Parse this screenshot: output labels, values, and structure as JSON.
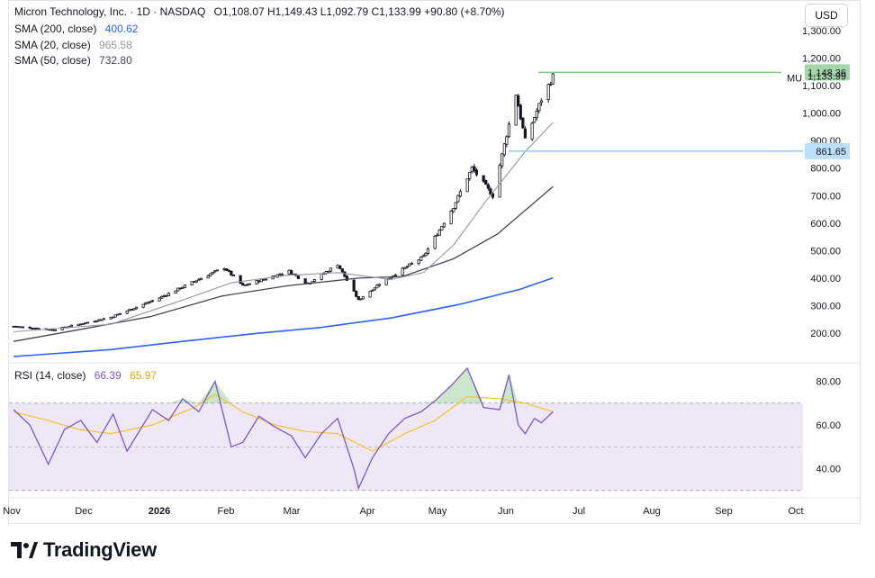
{
  "legend": {
    "title": "Micron Technology, Inc. · 1D · NASDAQ",
    "ohlc": "O1,108.07  H1,149.43  L1,092.79  C1,133.99  +90.80 (+8.70%)",
    "sma200_label": "SMA (200, close)",
    "sma200_value": "400.62",
    "sma20_label": "SMA (20, close)",
    "sma20_value": "965.58",
    "sma50_label": "SMA (50, close)",
    "sma50_value": "732.80",
    "rsi_label": "RSI (14, close)",
    "rsi_value": "66.39",
    "rsi_ma_value": "65.97"
  },
  "currency_button": "USD",
  "brand": "TradingView",
  "colors": {
    "up": "#ffffff",
    "down": "#131722",
    "sma200": "#2962ff",
    "sma20": "#9598a1",
    "sma50": "#434651",
    "rsi": "#7e57c2",
    "rsi_ma": "#f7c325",
    "rsi_band": "#ede7f6",
    "resistance": "#81c784",
    "support": "#90caf9",
    "price_label_green": "#a5d6a7",
    "price_label_blue": "#bbdefb"
  },
  "chart_data": {
    "type": "candlestick",
    "symbol": "MU",
    "price_axis": {
      "ticks": [
        "1,300.00",
        "1,200.00",
        "1,100.00",
        "1,000.00",
        "900.00",
        "800.00",
        "700.00",
        "600.00",
        "500.00",
        "400.00",
        "300.00",
        "200.00"
      ],
      "range": [
        130,
        1340
      ]
    },
    "time_axis": {
      "labels": [
        "Nov",
        "Dec",
        "2026",
        "Feb",
        "Mar",
        "Apr",
        "May",
        "Jun",
        "Jul",
        "Aug",
        "Sep",
        "Oct"
      ]
    },
    "last_price": "1,133.99",
    "last_price_label": "MU",
    "resistance_level": "1,148.36",
    "support_level": "861.65",
    "anchors": [
      {
        "date": "2025-11-03",
        "close": 225
      },
      {
        "date": "2025-11-20",
        "close": 212
      },
      {
        "date": "2025-12-15",
        "close": 258
      },
      {
        "date": "2026-01-05",
        "close": 328
      },
      {
        "date": "2026-01-26",
        "close": 412
      },
      {
        "date": "2026-02-02",
        "close": 438
      },
      {
        "date": "2026-02-10",
        "close": 372
      },
      {
        "date": "2026-03-02",
        "close": 425
      },
      {
        "date": "2026-03-10",
        "close": 380
      },
      {
        "date": "2026-03-23",
        "close": 450
      },
      {
        "date": "2026-04-01",
        "close": 320
      },
      {
        "date": "2026-04-10",
        "close": 380
      },
      {
        "date": "2026-04-29",
        "close": 478
      },
      {
        "date": "2026-05-12",
        "close": 660
      },
      {
        "date": "2026-05-20",
        "close": 800
      },
      {
        "date": "2026-05-29",
        "close": 700
      },
      {
        "date": "2026-06-08",
        "close": 1070
      },
      {
        "date": "2026-06-12",
        "close": 900
      },
      {
        "date": "2026-06-19",
        "close": 1050
      },
      {
        "date": "2026-06-24",
        "close": 1134
      }
    ],
    "sma20": [
      {
        "date": "2025-11-03",
        "value": 205
      },
      {
        "date": "2025-12-15",
        "value": 232
      },
      {
        "date": "2026-01-15",
        "value": 320
      },
      {
        "date": "2026-02-05",
        "value": 383
      },
      {
        "date": "2026-03-01",
        "value": 410
      },
      {
        "date": "2026-03-23",
        "value": 420
      },
      {
        "date": "2026-04-15",
        "value": 395
      },
      {
        "date": "2026-04-29",
        "value": 420
      },
      {
        "date": "2026-05-12",
        "value": 520
      },
      {
        "date": "2026-05-26",
        "value": 680
      },
      {
        "date": "2026-06-12",
        "value": 860
      },
      {
        "date": "2026-06-24",
        "value": 966
      }
    ],
    "sma50": [
      {
        "date": "2025-11-03",
        "value": 170
      },
      {
        "date": "2025-12-01",
        "value": 212
      },
      {
        "date": "2026-01-01",
        "value": 260
      },
      {
        "date": "2026-02-01",
        "value": 335
      },
      {
        "date": "2026-03-01",
        "value": 372
      },
      {
        "date": "2026-04-01",
        "value": 400
      },
      {
        "date": "2026-04-20",
        "value": 406
      },
      {
        "date": "2026-05-12",
        "value": 470
      },
      {
        "date": "2026-05-31",
        "value": 560
      },
      {
        "date": "2026-06-24",
        "value": 733
      }
    ],
    "sma200": [
      {
        "date": "2025-11-03",
        "value": 115
      },
      {
        "date": "2025-12-15",
        "value": 140
      },
      {
        "date": "2026-01-15",
        "value": 170
      },
      {
        "date": "2026-02-15",
        "value": 198
      },
      {
        "date": "2026-03-15",
        "value": 220
      },
      {
        "date": "2026-04-15",
        "value": 255
      },
      {
        "date": "2026-05-15",
        "value": 305
      },
      {
        "date": "2026-06-10",
        "value": 360
      },
      {
        "date": "2026-06-24",
        "value": 401
      }
    ],
    "rsi": {
      "axis_ticks": [
        "80.00",
        "60.00",
        "40.00"
      ],
      "range": [
        29,
        90
      ],
      "overbought": 70,
      "midline": 50,
      "oversold": 30,
      "rsi_points": [
        {
          "date": "2025-11-03",
          "value": 67
        },
        {
          "date": "2025-11-10",
          "value": 60
        },
        {
          "date": "2025-11-18",
          "value": 42
        },
        {
          "date": "2025-11-25",
          "value": 58
        },
        {
          "date": "2025-12-02",
          "value": 62
        },
        {
          "date": "2025-12-09",
          "value": 52
        },
        {
          "date": "2025-12-16",
          "value": 65
        },
        {
          "date": "2025-12-22",
          "value": 48
        },
        {
          "date": "2026-01-02",
          "value": 67
        },
        {
          "date": "2026-01-09",
          "value": 62
        },
        {
          "date": "2026-01-15",
          "value": 72
        },
        {
          "date": "2026-01-22",
          "value": 66
        },
        {
          "date": "2026-01-29",
          "value": 80
        },
        {
          "date": "2026-02-05",
          "value": 50
        },
        {
          "date": "2026-02-10",
          "value": 52
        },
        {
          "date": "2026-02-17",
          "value": 64
        },
        {
          "date": "2026-02-24",
          "value": 59
        },
        {
          "date": "2026-03-03",
          "value": 55
        },
        {
          "date": "2026-03-09",
          "value": 45
        },
        {
          "date": "2026-03-16",
          "value": 56
        },
        {
          "date": "2026-03-23",
          "value": 63
        },
        {
          "date": "2026-03-30",
          "value": 40
        },
        {
          "date": "2026-04-01",
          "value": 31
        },
        {
          "date": "2026-04-07",
          "value": 45
        },
        {
          "date": "2026-04-14",
          "value": 56
        },
        {
          "date": "2026-04-21",
          "value": 63
        },
        {
          "date": "2026-04-28",
          "value": 66
        },
        {
          "date": "2026-05-04",
          "value": 71
        },
        {
          "date": "2026-05-11",
          "value": 78
        },
        {
          "date": "2026-05-18",
          "value": 86
        },
        {
          "date": "2026-05-25",
          "value": 68
        },
        {
          "date": "2026-06-01",
          "value": 67
        },
        {
          "date": "2026-06-05",
          "value": 83
        },
        {
          "date": "2026-06-09",
          "value": 60
        },
        {
          "date": "2026-06-12",
          "value": 56
        },
        {
          "date": "2026-06-16",
          "value": 63
        },
        {
          "date": "2026-06-19",
          "value": 61
        },
        {
          "date": "2026-06-24",
          "value": 66
        }
      ],
      "ma_points": [
        {
          "date": "2025-11-03",
          "value": 66
        },
        {
          "date": "2025-11-18",
          "value": 62
        },
        {
          "date": "2025-12-01",
          "value": 58
        },
        {
          "date": "2025-12-15",
          "value": 56
        },
        {
          "date": "2026-01-02",
          "value": 60
        },
        {
          "date": "2026-01-20",
          "value": 68
        },
        {
          "date": "2026-01-29",
          "value": 74
        },
        {
          "date": "2026-02-10",
          "value": 66
        },
        {
          "date": "2026-02-24",
          "value": 60
        },
        {
          "date": "2026-03-09",
          "value": 57
        },
        {
          "date": "2026-03-23",
          "value": 56
        },
        {
          "date": "2026-04-07",
          "value": 48
        },
        {
          "date": "2026-04-21",
          "value": 56
        },
        {
          "date": "2026-05-04",
          "value": 62
        },
        {
          "date": "2026-05-18",
          "value": 73
        },
        {
          "date": "2026-06-01",
          "value": 72
        },
        {
          "date": "2026-06-12",
          "value": 70
        },
        {
          "date": "2026-06-24",
          "value": 66
        }
      ]
    }
  }
}
